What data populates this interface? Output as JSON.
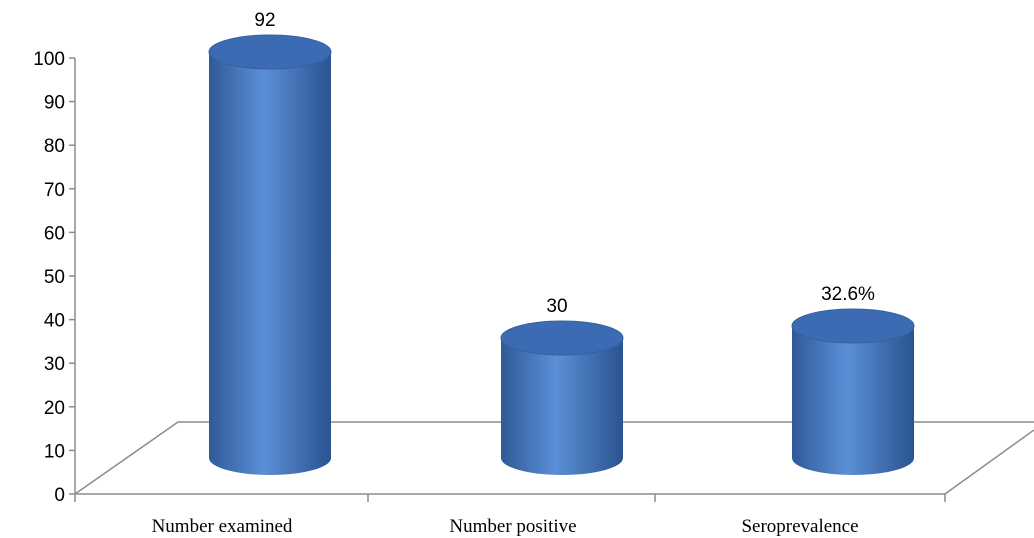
{
  "chart_data": {
    "type": "bar",
    "style": "3d-cylinder",
    "categories": [
      "Number examined",
      "Number positive",
      "Seroprevalence"
    ],
    "values": [
      92,
      30,
      32.6
    ],
    "data_labels": [
      "92",
      "30",
      "32.6%"
    ],
    "ylim": [
      0,
      100
    ],
    "yticks": [
      0,
      10,
      20,
      30,
      40,
      50,
      60,
      70,
      80,
      90,
      100
    ],
    "title": "",
    "xlabel": "",
    "ylabel": "",
    "grid": false,
    "legend": "none",
    "colors": {
      "bar_light": "#5b8fd6",
      "bar_dark": "#2a5390",
      "bar_top": "#3d6bb3",
      "axis": "#8c8c8c"
    }
  }
}
